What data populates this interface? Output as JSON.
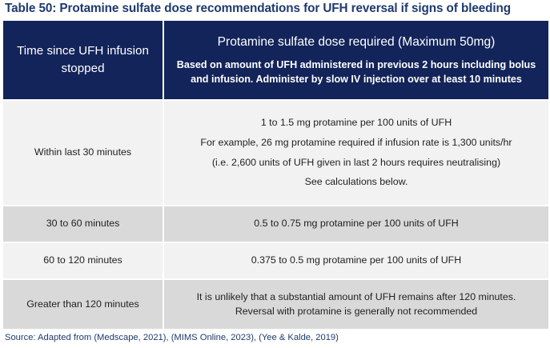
{
  "title": "Table 50: Protamine sulfate dose recommendations for UFH reversal if signs of bleeding",
  "header": {
    "col1": "Time since UFH infusion stopped",
    "col2_main": "Protamine sulfate dose required (Maximum 50mg)",
    "col2_sub": "Based on amount of UFH administered in previous 2 hours including bolus and infusion. Administer by slow IV injection over at least 10 minutes"
  },
  "rows": [
    {
      "time": "Within last 30 minutes",
      "dose_lines": [
        "1 to 1.5 mg protamine per 100 units of UFH",
        "For example, 26 mg protamine required if infusion rate is 1,300 units/hr",
        "(i.e. 2,600 units of UFH given in last 2 hours requires neutralising)",
        "See calculations below."
      ]
    },
    {
      "time": "30 to 60 minutes",
      "dose_lines": [
        "0.5 to 0.75 mg protamine per 100 units of UFH"
      ]
    },
    {
      "time": "60 to 120 minutes",
      "dose_lines": [
        "0.375 to 0.5 mg protamine per 100 units of UFH"
      ]
    },
    {
      "time": "Greater than 120 minutes",
      "dose_lines": [
        "It is unlikely that a substantial amount of UFH remains after 120 minutes.",
        "Reversal with protamine is generally not recommended"
      ]
    }
  ],
  "source": "Source: Adapted from (Medscape, 2021), (MIMS Online, 2023), (Yee & Kalde, 2019)",
  "colors": {
    "header_bg": "#13245a",
    "title_text": "#1e3a6e",
    "row_light": "#f2f2f2",
    "row_dark": "#d9d9d9"
  }
}
